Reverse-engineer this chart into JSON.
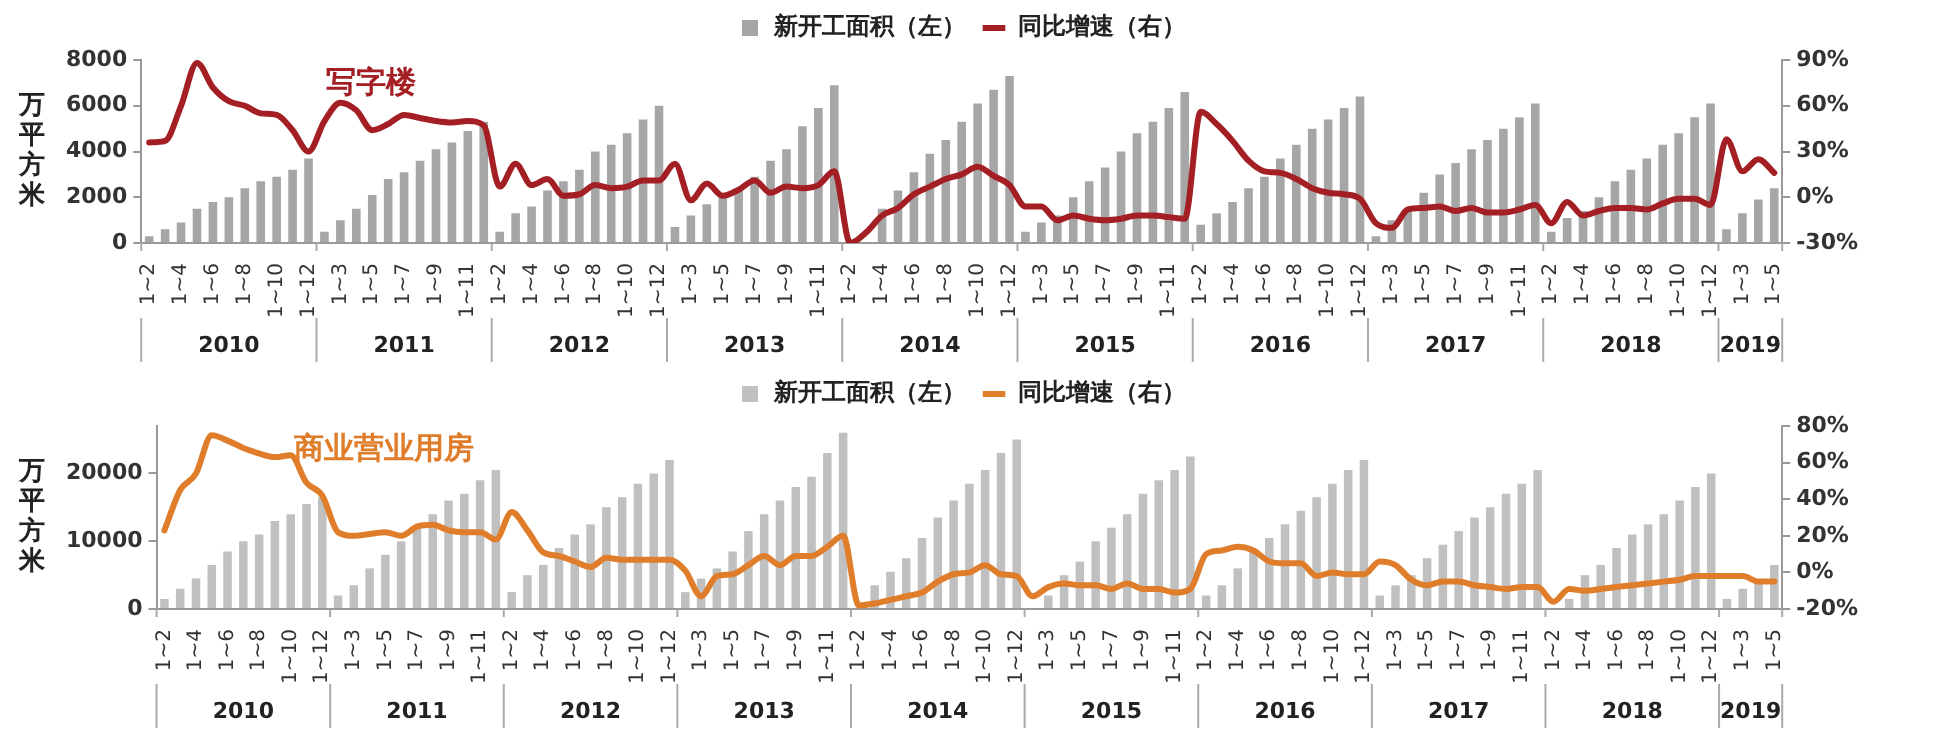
{
  "chart_data": [
    {
      "type": "bar",
      "title": "写字楼",
      "ylabel": "万平方米",
      "legend": "top",
      "categories": [
        "1~2",
        null,
        "1~4",
        null,
        "1~6",
        null,
        "1~8",
        null,
        "1~10",
        null,
        "1~12",
        null,
        "1~3",
        null,
        "1~5",
        null,
        "1~7",
        null,
        "1~9",
        null,
        "1~11",
        null,
        "1~2",
        null,
        "1~4",
        null,
        "1~6",
        null,
        "1~8",
        null,
        "1~10",
        null,
        "1~12",
        null,
        "1~3",
        null,
        "1~5",
        null,
        "1~7",
        null,
        "1~9",
        null,
        "1~11",
        null,
        "1~2",
        null,
        "1~4",
        null,
        "1~6",
        null,
        "1~8",
        null,
        "1~10",
        null,
        "1~12",
        null,
        "1~3",
        null,
        "1~5",
        null,
        "1~7",
        null,
        "1~9",
        null,
        "1~11",
        null,
        "1~2",
        null,
        "1~4",
        null,
        "1~6",
        null,
        "1~8",
        null,
        "1~10",
        null,
        "1~12",
        null,
        "1~3",
        null,
        "1~5",
        null,
        "1~7",
        null,
        "1~9",
        null,
        "1~11",
        null,
        "1~2",
        null,
        "1~4",
        null,
        "1~6",
        null,
        "1~8",
        null,
        "1~10",
        null,
        "1~12",
        null,
        "1~3",
        null,
        "1~5"
      ],
      "series": [
        {
          "name": "新开工面积（左）",
          "type": "bar",
          "color": "#a6a6a6",
          "values": [
            300,
            600,
            900,
            1500,
            1800,
            2000,
            2400,
            2700,
            2900,
            3200,
            3700,
            500,
            1000,
            1500,
            2100,
            2800,
            3100,
            3600,
            4100,
            4400,
            4900,
            5300,
            500,
            1300,
            1600,
            2300,
            2700,
            3200,
            4000,
            4300,
            4800,
            5400,
            6000,
            700,
            1200,
            1700,
            2100,
            2400,
            2900,
            3600,
            4100,
            5100,
            5900,
            6900,
            null,
            null,
            1500,
            2300,
            3100,
            3900,
            4500,
            5300,
            6100,
            6700,
            7300,
            500,
            900,
            1200,
            2000,
            2700,
            3300,
            4000,
            4800,
            5300,
            5900,
            6600,
            800,
            1300,
            1800,
            2400,
            2900,
            3700,
            4300,
            5000,
            5400,
            5900,
            6400,
            300,
            1000,
            1400,
            2200,
            3000,
            3500,
            4100,
            4500,
            5000,
            5500,
            6100,
            500,
            1100,
            1400,
            2000,
            2700,
            3200,
            3700,
            4300,
            4800,
            5500,
            6100,
            600,
            1300,
            1900,
            2400
          ]
        },
        {
          "name": "同比增速（右）",
          "type": "line",
          "axis": "y2",
          "color": "#a31f24",
          "values": [
            36,
            37,
            60,
            88,
            72,
            63,
            60,
            55,
            54,
            44,
            30,
            50,
            62,
            57,
            44,
            48,
            54,
            52,
            50,
            49,
            50,
            47,
            7,
            22,
            8,
            12,
            1,
            2,
            8,
            6,
            7,
            11,
            11,
            22,
            -2,
            9,
            1,
            5,
            11,
            3,
            7,
            6,
            8,
            17,
            -30,
            -23,
            -12,
            -7,
            2,
            7,
            12,
            15,
            20,
            14,
            8,
            -6,
            -6,
            -15,
            -12,
            -14,
            -15,
            -14,
            -12,
            -12,
            -13,
            -14,
            56,
            48,
            37,
            24,
            17,
            16,
            12,
            6,
            3,
            2,
            -1,
            -17,
            -20,
            -8,
            -7,
            -6,
            -9,
            -7,
            -10,
            -10,
            -8,
            -5,
            -17,
            -3,
            -12,
            -9,
            -7,
            -7,
            -8,
            -4,
            -1,
            -1,
            -5,
            38,
            17,
            25,
            16
          ]
        }
      ],
      "ylim": [
        0,
        8000
      ],
      "yticks": [
        0,
        2000,
        4000,
        6000,
        8000
      ],
      "y2lim": [
        -30,
        90
      ],
      "y2ticks": [
        {
          "value": -30,
          "label": "-30%"
        },
        {
          "value": 0,
          "label": "0%"
        },
        {
          "value": 30,
          "label": "30%"
        },
        {
          "value": 60,
          "label": "60%"
        },
        {
          "value": 90,
          "label": "90%"
        }
      ],
      "annotations": [
        "2010",
        "2011",
        "2012",
        "2013",
        "2014",
        "2015",
        "2016",
        "2017",
        "2018",
        "2019"
      ]
    },
    {
      "type": "bar",
      "title": "商业营业用房",
      "ylabel": "万平方米",
      "legend": "top",
      "categories": [
        "1~2",
        null,
        "1~4",
        null,
        "1~6",
        null,
        "1~8",
        null,
        "1~10",
        null,
        "1~12",
        null,
        "1~3",
        null,
        "1~5",
        null,
        "1~7",
        null,
        "1~9",
        null,
        "1~11",
        null,
        "1~2",
        null,
        "1~4",
        null,
        "1~6",
        null,
        "1~8",
        null,
        "1~10",
        null,
        "1~12",
        null,
        "1~3",
        null,
        "1~5",
        null,
        "1~7",
        null,
        "1~9",
        null,
        "1~11",
        null,
        "1~2",
        null,
        "1~4",
        null,
        "1~6",
        null,
        "1~8",
        null,
        "1~10",
        null,
        "1~12",
        null,
        "1~3",
        null,
        "1~5",
        null,
        "1~7",
        null,
        "1~9",
        null,
        "1~11",
        null,
        "1~2",
        null,
        "1~4",
        null,
        "1~6",
        null,
        "1~8",
        null,
        "1~10",
        null,
        "1~12",
        null,
        "1~3",
        null,
        "1~5",
        null,
        "1~7",
        null,
        "1~9",
        null,
        "1~11",
        null,
        "1~2",
        null,
        "1~4",
        null,
        "1~6",
        null,
        "1~8",
        null,
        "1~10",
        null,
        "1~12",
        null,
        "1~3",
        null,
        "1~5"
      ],
      "series": [
        {
          "name": "新开工面积（左）",
          "type": "bar",
          "color": "#c0c0c0",
          "values": [
            1500,
            3000,
            4500,
            6500,
            8500,
            10000,
            11000,
            13000,
            14000,
            15500,
            16500,
            2000,
            3500,
            6000,
            8000,
            10000,
            12000,
            14000,
            16000,
            17000,
            19000,
            20500,
            2500,
            5000,
            6500,
            9000,
            11000,
            12500,
            15000,
            16500,
            18500,
            20000,
            22000,
            2500,
            4500,
            6000,
            8500,
            11500,
            14000,
            16000,
            18000,
            19500,
            23000,
            26000,
            null,
            3500,
            5500,
            7500,
            10500,
            13500,
            16000,
            18500,
            20500,
            23000,
            25000,
            null,
            2000,
            5000,
            7000,
            10000,
            12000,
            14000,
            17000,
            19000,
            20500,
            22500,
            2000,
            3500,
            6000,
            8500,
            10500,
            12500,
            14500,
            16500,
            18500,
            20500,
            22000,
            2000,
            3500,
            5000,
            7500,
            9500,
            11500,
            13500,
            15000,
            17000,
            18500,
            20500,
            null,
            1500,
            5000,
            6500,
            9000,
            11000,
            12500,
            14000,
            16000,
            18000,
            20000,
            1500,
            3000,
            4000,
            6500
          ]
        },
        {
          "name": "同比增速（右）",
          "type": "line",
          "axis": "y2",
          "color": "#e07d2a",
          "values": [
            23,
            45,
            54,
            75,
            72,
            68,
            65,
            63,
            64,
            49,
            42,
            22,
            20,
            21,
            22,
            20,
            25,
            26,
            23,
            22,
            22,
            18,
            33,
            23,
            11,
            9,
            6,
            3,
            8,
            7,
            7,
            7,
            7,
            1,
            -13,
            -2,
            -1,
            4,
            9,
            4,
            9,
            9,
            14,
            20,
            -18,
            -17,
            -15,
            -13,
            -11,
            -5,
            -1,
            0,
            4,
            -1,
            -2,
            -13,
            -8,
            -6,
            -7,
            -7,
            -9,
            -6,
            -9,
            -9,
            -11,
            -9,
            10,
            12,
            14,
            12,
            6,
            5,
            5,
            -2,
            0,
            -1,
            -1,
            6,
            4,
            -4,
            -7,
            -5,
            -5,
            -7,
            -8,
            -9,
            -8,
            -8,
            -16,
            -9,
            -10,
            -9,
            -8,
            -7,
            -6,
            -5,
            -4,
            -2,
            -2,
            -2,
            -2,
            -5,
            -5
          ]
        }
      ],
      "ylim": [
        0,
        27000
      ],
      "yticks": [
        0,
        10000,
        20000
      ],
      "y2lim": [
        -20,
        80
      ],
      "y2ticks": [
        {
          "value": -20,
          "label": "-20%"
        },
        {
          "value": 0,
          "label": "0%"
        },
        {
          "value": 20,
          "label": "20%"
        },
        {
          "value": 40,
          "label": "40%"
        },
        {
          "value": 60,
          "label": "60%"
        },
        {
          "value": 80,
          "label": "80%"
        }
      ],
      "annotations": [
        "2010",
        "2011",
        "2012",
        "2013",
        "2014",
        "2015",
        "2016",
        "2017",
        "2018",
        "2019"
      ]
    }
  ]
}
